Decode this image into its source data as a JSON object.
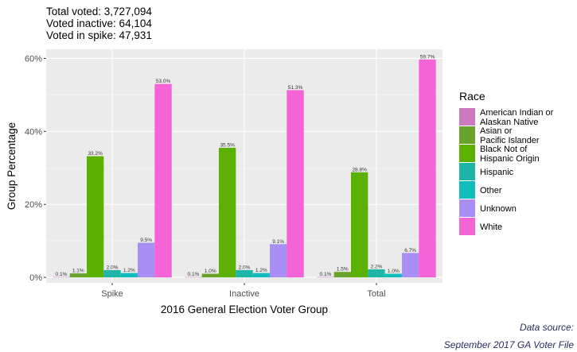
{
  "subtitle": {
    "lines": [
      "Total voted: 3,727,094",
      "Voted inactive: 64,104",
      "Voted in spike: 47,931"
    ]
  },
  "caption": {
    "lines": [
      "Data source:",
      "September 2017 GA Voter File"
    ]
  },
  "colors": {
    "panel_bg": "#ebebeb",
    "grid_major": "#ffffff",
    "grid_minor": "#f5f5f5",
    "American Indian or Alaskan Native": "#cc79c0",
    "Asian or Pacific Islander": "#6aa32c",
    "Black Not of Hispanic Origin": "#5cb000",
    "Hispanic": "#1fb5a6",
    "Other": "#12bcbc",
    "Unknown": "#a88ef5",
    "White": "#f564d6"
  },
  "chart_data": {
    "type": "bar",
    "xlabel": "2016 General Election Voter Group",
    "ylabel": "Group Percentage",
    "categories": [
      "Spike",
      "Inactive",
      "Total"
    ],
    "ylim": [
      -1.5,
      62.5
    ],
    "yticks": [
      0,
      20,
      40,
      60
    ],
    "ytick_labels": [
      "0%",
      "20%",
      "40%",
      "60%"
    ],
    "grid": true,
    "legend_title": "Race",
    "legend_position": "right",
    "series": [
      {
        "name": "American Indian or Alaskan Native",
        "legend_lines": [
          "American Indian or",
          "Alaskan Native"
        ],
        "values": [
          0.1,
          0.1,
          0.1
        ],
        "labels": [
          "0.1%",
          "0.1%",
          "0.1%"
        ]
      },
      {
        "name": "Asian or Pacific Islander",
        "legend_lines": [
          "Asian or",
          "Pacific Islander"
        ],
        "values": [
          1.1,
          1.0,
          1.5
        ],
        "labels": [
          "1.1%",
          "1.0%",
          "1.5%"
        ]
      },
      {
        "name": "Black Not of Hispanic Origin",
        "legend_lines": [
          "Black Not of",
          "Hispanic Origin"
        ],
        "values": [
          33.2,
          35.5,
          28.8
        ],
        "labels": [
          "33.2%",
          "35.5%",
          "28.8%"
        ]
      },
      {
        "name": "Hispanic",
        "legend_lines": [
          "Hispanic"
        ],
        "values": [
          2.0,
          2.0,
          2.2
        ],
        "labels": [
          "2.0%",
          "2.0%",
          "2.2%"
        ]
      },
      {
        "name": "Other",
        "legend_lines": [
          "Other"
        ],
        "values": [
          1.2,
          1.2,
          1.0
        ],
        "labels": [
          "1.2%",
          "1.2%",
          "1.0%"
        ]
      },
      {
        "name": "Unknown",
        "legend_lines": [
          "Unknown"
        ],
        "values": [
          9.5,
          9.1,
          6.7
        ],
        "labels": [
          "9.5%",
          "9.1%",
          "6.7%"
        ]
      },
      {
        "name": "White",
        "legend_lines": [
          "White"
        ],
        "values": [
          53.0,
          51.3,
          59.7
        ],
        "labels": [
          "53.0%",
          "51.3%",
          "59.7%"
        ]
      }
    ]
  }
}
